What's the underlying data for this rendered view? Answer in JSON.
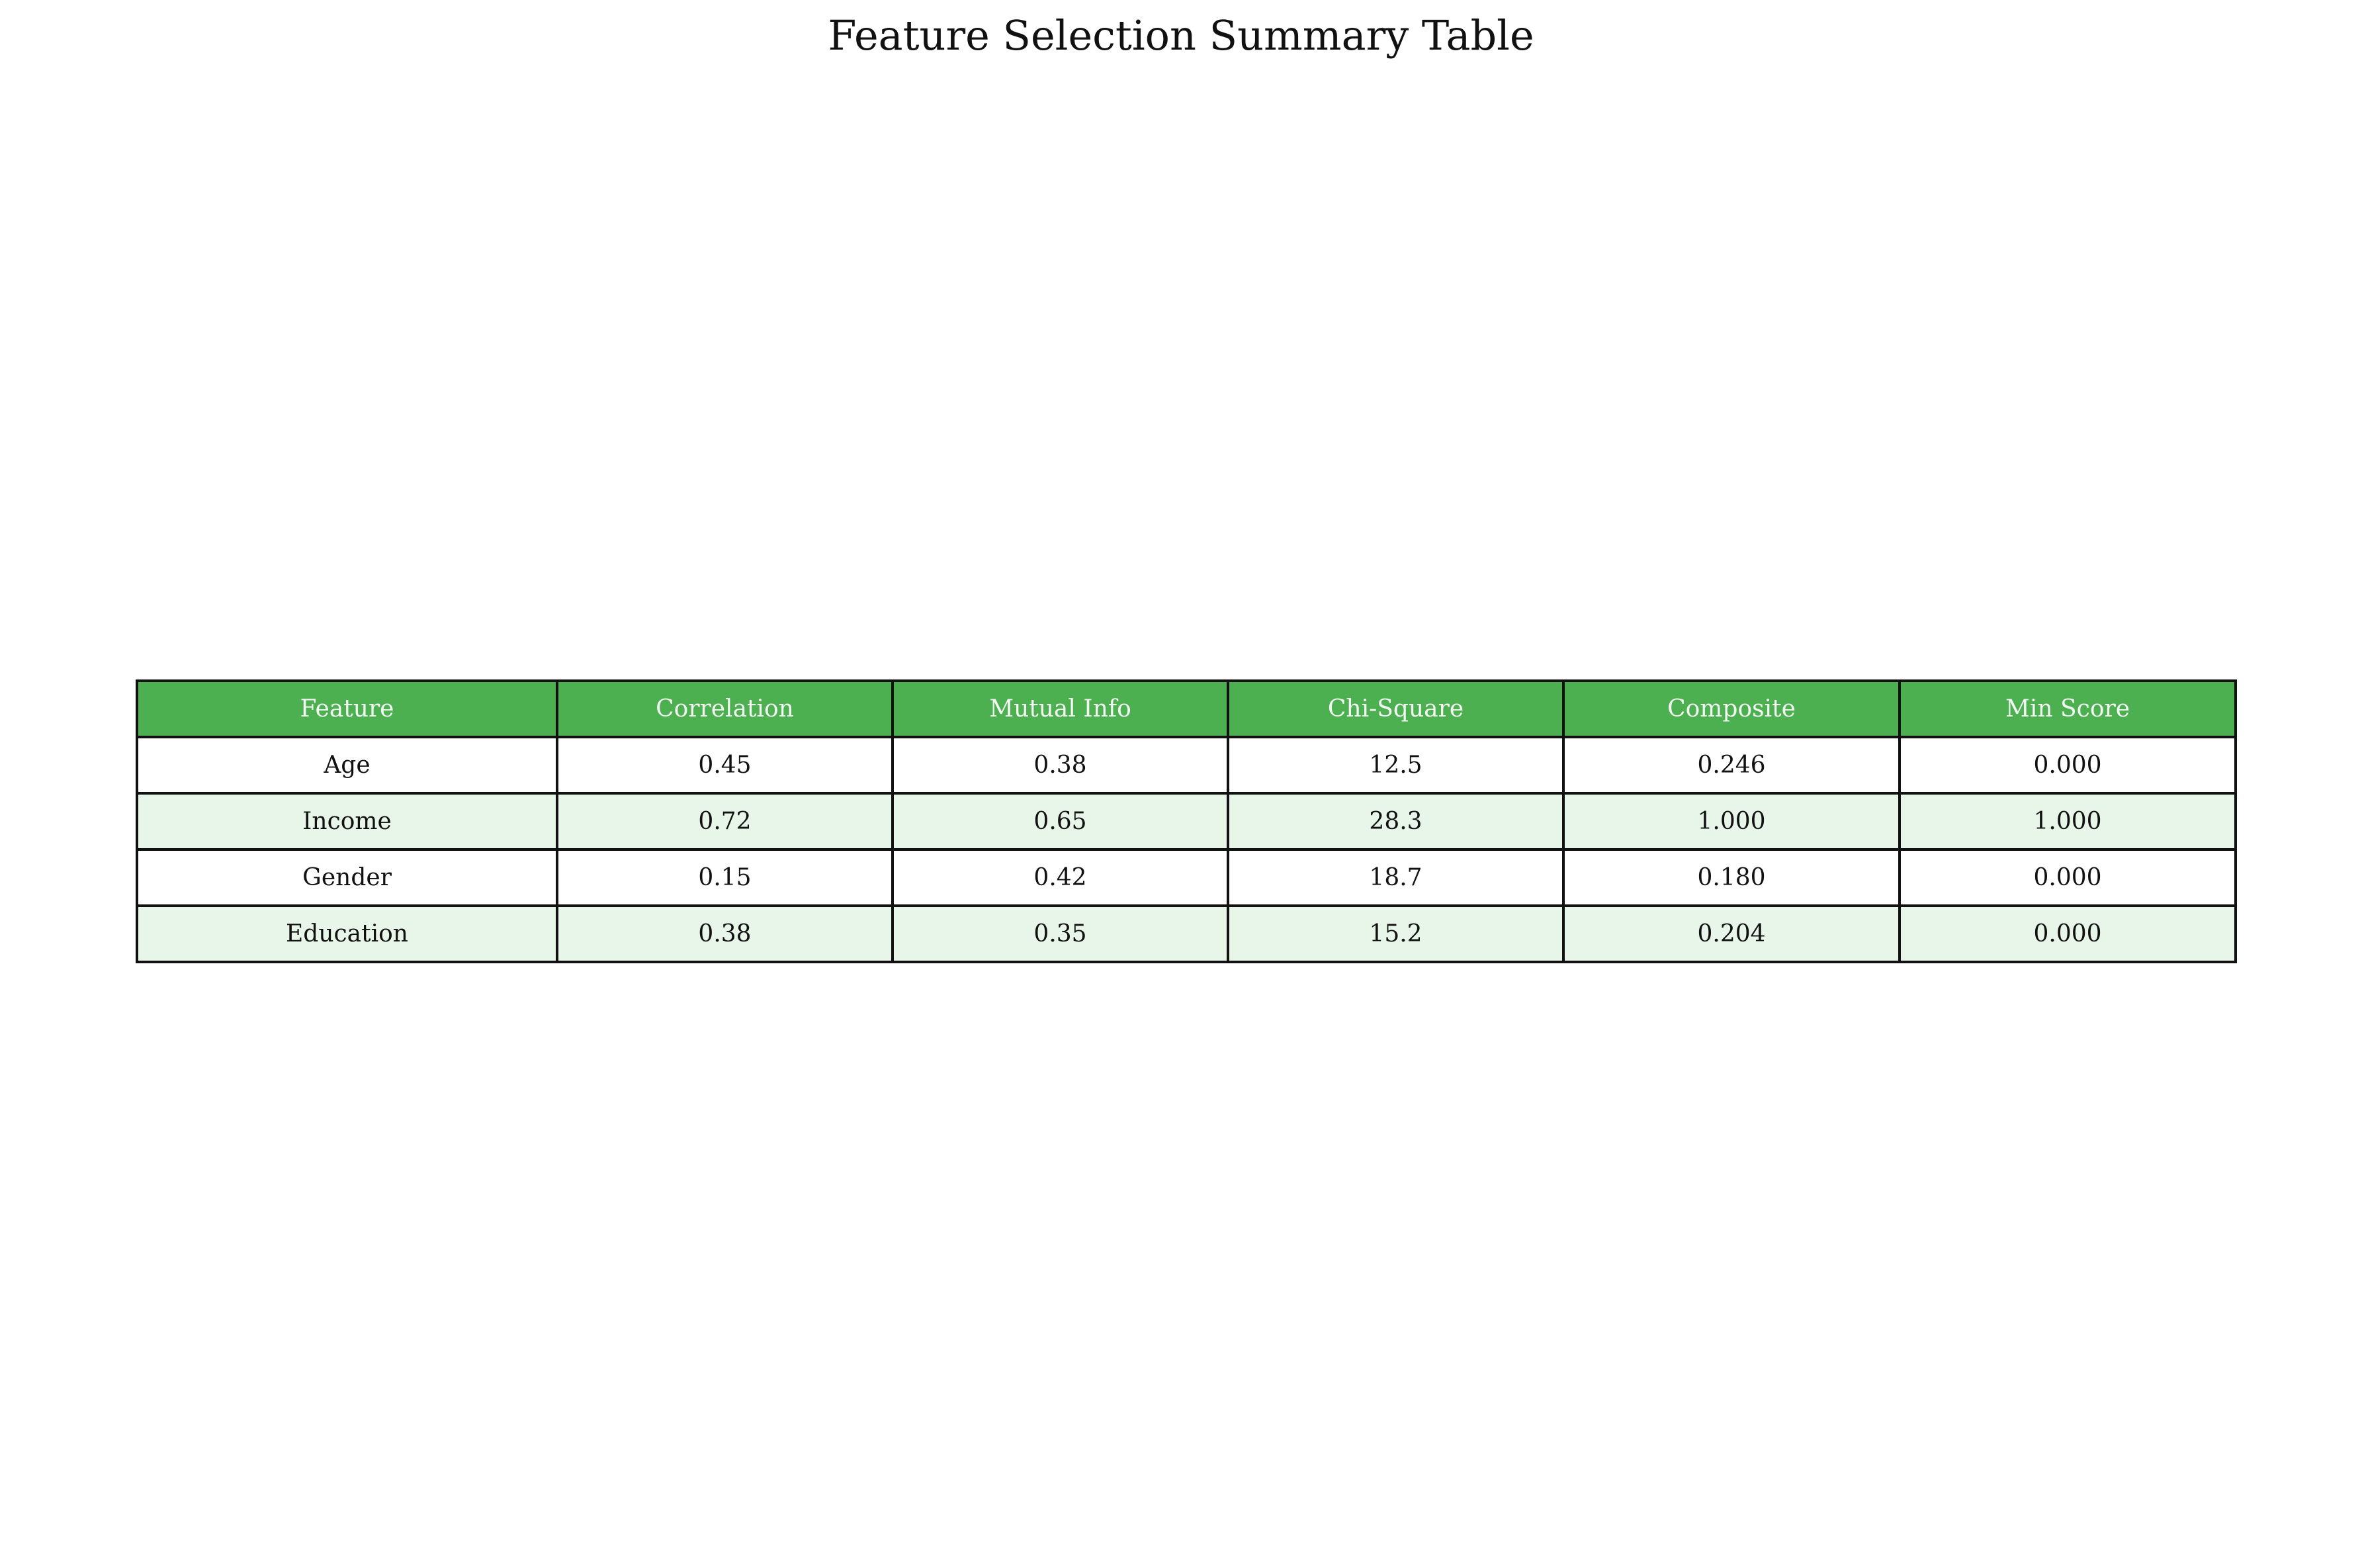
{
  "chart_data": {
    "type": "table",
    "title": "Feature Selection Summary Table",
    "columns": [
      "Feature",
      "Correlation",
      "Mutual Info",
      "Chi-Square",
      "Composite",
      "Min Score"
    ],
    "rows": [
      [
        "Age",
        "0.45",
        "0.38",
        "12.5",
        "0.246",
        "0.000"
      ],
      [
        "Income",
        "0.72",
        "0.65",
        "28.3",
        "1.000",
        "1.000"
      ],
      [
        "Gender",
        "0.15",
        "0.42",
        "18.7",
        "0.180",
        "0.000"
      ],
      [
        "Education",
        "0.38",
        "0.35",
        "15.2",
        "0.204",
        "0.000"
      ]
    ],
    "colors": {
      "header_bg": "#4caf50",
      "header_text": "#f2f7f2",
      "row_alt_bg": "#e8f5e9",
      "row_bg": "#ffffff",
      "border": "#111111"
    }
  }
}
